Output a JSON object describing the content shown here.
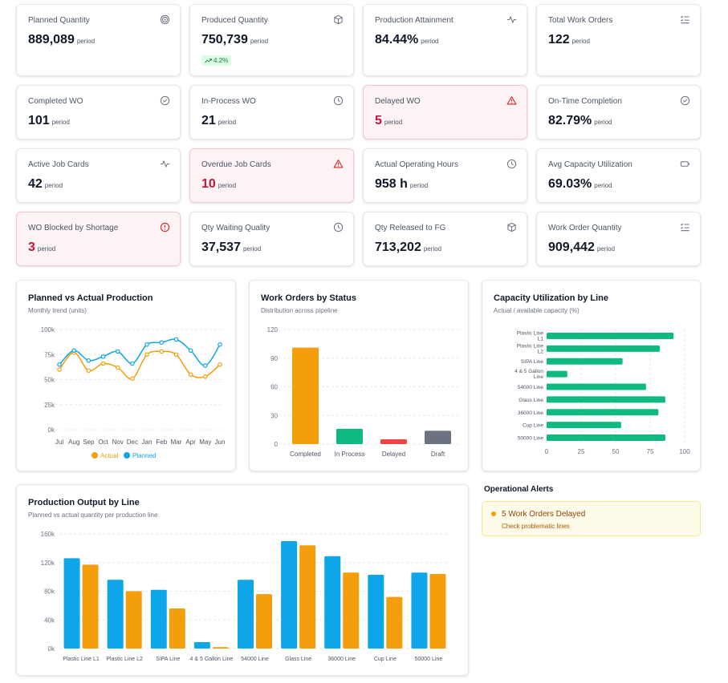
{
  "kpis": [
    {
      "title": "Planned Quantity",
      "value": "889,089",
      "sub": "period",
      "icon": "target-icon"
    },
    {
      "title": "Produced Quantity",
      "value": "750,739",
      "sub": "period",
      "icon": "box-icon",
      "badge": "4.2%"
    },
    {
      "title": "Production Attainment",
      "value": "84.44%",
      "sub": "period",
      "icon": "activity-icon"
    },
    {
      "title": "Total Work Orders",
      "value": "122",
      "sub": "period",
      "icon": "list-check-icon"
    },
    {
      "title": "Completed WO",
      "value": "101",
      "sub": "period",
      "icon": "check-circle-icon"
    },
    {
      "title": "In-Process WO",
      "value": "21",
      "sub": "period",
      "icon": "clock-icon"
    },
    {
      "title": "Delayed WO",
      "value": "5",
      "sub": "period",
      "icon": "warning-triangle-icon",
      "alert": true
    },
    {
      "title": "On-Time Completion",
      "value": "82.79%",
      "sub": "period",
      "icon": "check-circle-icon"
    },
    {
      "title": "Active Job Cards",
      "value": "42",
      "sub": "period",
      "icon": "activity-icon"
    },
    {
      "title": "Overdue Job Cards",
      "value": "10",
      "sub": "period",
      "icon": "warning-triangle-icon",
      "alert": true
    },
    {
      "title": "Actual Operating Hours",
      "value": "958 h",
      "sub": "period",
      "icon": "clock-icon"
    },
    {
      "title": "Avg Capacity Utilization",
      "value": "69.03%",
      "sub": "period",
      "icon": "battery-icon"
    },
    {
      "title": "WO Blocked by Shortage",
      "value": "3",
      "sub": "period",
      "icon": "alert-circle-icon",
      "alert": true
    },
    {
      "title": "Qty Waiting Quality",
      "value": "37,537",
      "sub": "period",
      "icon": "clock-icon"
    },
    {
      "title": "Qty Released to FG",
      "value": "713,202",
      "sub": "period",
      "icon": "box-icon"
    },
    {
      "title": "Work Order Quantity",
      "value": "909,442",
      "sub": "period",
      "icon": "list-check-icon"
    }
  ],
  "colors": {
    "blue": "#0ea5e9",
    "orange": "#f59e0b",
    "green": "#10b981",
    "red": "#ef4444",
    "gray": "#6b7280"
  },
  "chart_data": [
    {
      "type": "line",
      "title": "Planned vs Actual Production",
      "subtitle": "Monthly trend (units)",
      "x": [
        "Jul",
        "Aug",
        "Sep",
        "Oct",
        "Nov",
        "Dec",
        "Jan",
        "Feb",
        "Mar",
        "Apr",
        "May",
        "Jun"
      ],
      "series": [
        {
          "name": "Actual",
          "color": "#f59e0b",
          "values": [
            60000,
            77000,
            59000,
            66000,
            62000,
            51000,
            75000,
            78000,
            75000,
            55000,
            53000,
            65000
          ]
        },
        {
          "name": "Planned",
          "color": "#0ea5e9",
          "values": [
            65000,
            79000,
            69000,
            73000,
            78000,
            66000,
            85000,
            87000,
            90000,
            79000,
            64000,
            85000
          ]
        }
      ],
      "ylim": [
        0,
        100000
      ],
      "yticks": [
        "0k",
        "25k",
        "50k",
        "75k",
        "100k"
      ],
      "ytick_values": [
        0,
        25000,
        50000,
        75000,
        100000
      ],
      "legend": "bottom",
      "grid": true
    },
    {
      "type": "bar",
      "title": "Work Orders by Status",
      "subtitle": "Distribution across pipeline",
      "categories": [
        "Completed",
        "In Process",
        "Delayed",
        "Draft"
      ],
      "values": [
        101,
        16,
        5,
        14
      ],
      "colors": [
        "#f59e0b",
        "#10b981",
        "#ef4444",
        "#6b7280"
      ],
      "ylim": [
        0,
        120
      ],
      "yticks": [
        0,
        30,
        60,
        90,
        120
      ],
      "grid": true
    },
    {
      "type": "bar",
      "orientation": "horizontal",
      "title": "Capacity Utilization by Line",
      "subtitle": "Actual / available capacity (%)",
      "categories": [
        [
          "Plastic Line",
          "L1"
        ],
        [
          "Plastic Line",
          "L2"
        ],
        [
          "SIPA Line"
        ],
        [
          "4 & 5 Gallon",
          "Line"
        ],
        [
          "54000 Line"
        ],
        [
          "Glass Line"
        ],
        [
          "36000 Line"
        ],
        [
          "Cup Line"
        ],
        [
          "50000 Line"
        ]
      ],
      "values": [
        92,
        82,
        55,
        15,
        72,
        86,
        81,
        54,
        86
      ],
      "color": "#10b981",
      "xlim": [
        0,
        100
      ],
      "xticks": [
        0,
        25,
        50,
        75,
        100
      ]
    },
    {
      "type": "bar",
      "title": "Production Output by Line",
      "subtitle": "Planned vs actual quantity per production line",
      "categories": [
        "Plastic Line L1",
        "Plastic Line L2",
        "SIPA Line",
        "4 & 5 Gallon Line",
        "54000 Line",
        "Glass Line",
        "36000 Line",
        "Cup Line",
        "50000 Line"
      ],
      "series": [
        {
          "name": "Planned",
          "color": "#0ea5e9",
          "values": [
            126000,
            96000,
            82000,
            9000,
            96000,
            150000,
            129000,
            103000,
            106000
          ]
        },
        {
          "name": "Actual",
          "color": "#f59e0b",
          "values": [
            117000,
            80000,
            56000,
            2000,
            76000,
            144000,
            106000,
            72000,
            104000
          ]
        }
      ],
      "ylim": [
        0,
        160000
      ],
      "yticks": [
        "0k",
        "40k",
        "80k",
        "120k",
        "160k"
      ],
      "ytick_values": [
        0,
        40000,
        80000,
        120000,
        160000
      ],
      "grid": true
    }
  ],
  "alerts": {
    "title": "Operational Alerts",
    "items": [
      {
        "title": "5 Work Orders Delayed",
        "sub": "Check problematic lines"
      }
    ]
  }
}
